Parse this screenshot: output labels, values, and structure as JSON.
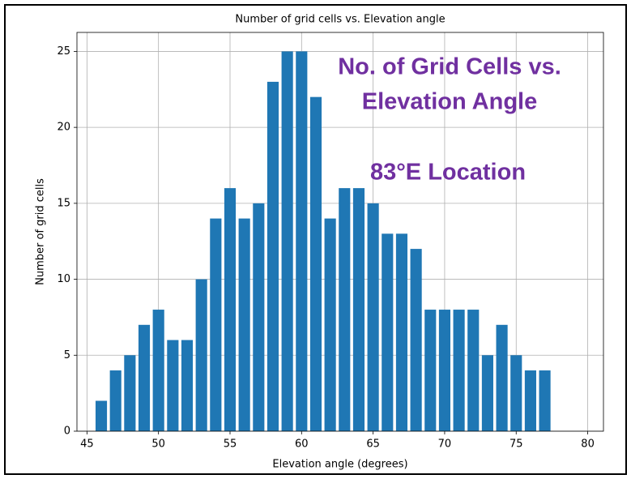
{
  "chart_data": {
    "type": "bar",
    "title": "Number of grid cells vs. Elevation angle",
    "x_label": "Elevation angle (degrees)",
    "y_label": "Number of grid cells",
    "x": [
      46,
      47,
      48,
      49,
      50,
      51,
      52,
      53,
      54,
      55,
      56,
      57,
      58,
      59,
      60,
      61,
      62,
      63,
      64,
      65,
      66,
      67,
      68,
      69,
      70,
      71,
      72,
      73,
      74,
      75,
      76,
      77
    ],
    "values": [
      2,
      4,
      5,
      7,
      8,
      6,
      6,
      10,
      14,
      16,
      14,
      15,
      23,
      25,
      25,
      22,
      14,
      16,
      16,
      15,
      13,
      13,
      12,
      8,
      8,
      8,
      8,
      5,
      7,
      5,
      4,
      4
    ],
    "color": "#1f77b4",
    "xlim": [
      44.3,
      81.1
    ],
    "xticks": [
      45,
      50,
      55,
      60,
      65,
      70,
      75,
      80
    ],
    "ylim": [
      0,
      26.25
    ],
    "yticks": [
      0,
      5,
      10,
      15,
      20,
      25
    ],
    "grid": true,
    "annotations": [
      "No. of Grid Cells vs.",
      "Elevation Angle",
      "83°E Location"
    ]
  }
}
